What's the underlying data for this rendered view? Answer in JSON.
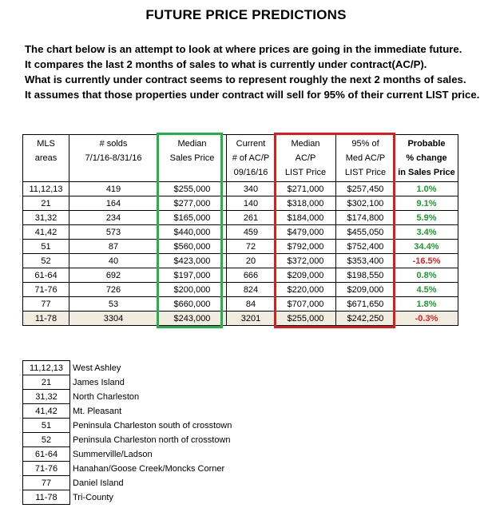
{
  "title": "FUTURE PRICE PREDICTIONS",
  "intro": [
    "The chart below is an attempt to look at where prices are going in the immediate future.",
    "It compares the last 2 months of sales to what is currently under contract(AC/P).",
    "What is currently under contract seems to represent roughly the next 2 months of sales.",
    "It assumes that those properties under contract will sell for 95% of their current LIST price."
  ],
  "headers": [
    [
      "MLS",
      "areas"
    ],
    [
      "# solds",
      "7/1/16-8/31/16"
    ],
    [
      "Median",
      "Sales Price"
    ],
    [
      "Current",
      "# of AC/P",
      "09/16/16"
    ],
    [
      "Median",
      "AC/P",
      "LIST Price"
    ],
    [
      "95% of",
      "Med AC/P",
      "LIST Price"
    ],
    [
      "Probable",
      "% change",
      "in Sales Price"
    ]
  ],
  "rows": [
    [
      "11,12,13",
      "419",
      "$255,000",
      "340",
      "$271,000",
      "$257,450",
      "1.0%"
    ],
    [
      "21",
      "164",
      "$277,000",
      "140",
      "$318,000",
      "$302,100",
      "9.1%"
    ],
    [
      "31,32",
      "234",
      "$165,000",
      "261",
      "$184,000",
      "$174,800",
      "5.9%"
    ],
    [
      "41,42",
      "573",
      "$440,000",
      "459",
      "$479,000",
      "$455,050",
      "3.4%"
    ],
    [
      "51",
      "87",
      "$560,000",
      "72",
      "$792,000",
      "$752,400",
      "34.4%"
    ],
    [
      "52",
      "40",
      "$423,000",
      "20",
      "$372,000",
      "$353,400",
      "-16.5%"
    ],
    [
      "61-64",
      "692",
      "$197,000",
      "666",
      "$209,000",
      "$198,550",
      "0.8%"
    ],
    [
      "71-76",
      "726",
      "$200,000",
      "824",
      "$220,000",
      "$209,000",
      "4.5%"
    ],
    [
      "77",
      "53",
      "$660,000",
      "84",
      "$707,000",
      "$671,650",
      "1.8%"
    ],
    [
      "11-78",
      "3304",
      "$243,000",
      "3201",
      "$255,000",
      "$242,250",
      "-0.3%"
    ]
  ],
  "legend": [
    [
      "11,12,13",
      "West Ashley"
    ],
    [
      "21",
      "James Island"
    ],
    [
      "31,32",
      "North Charleston"
    ],
    [
      "41,42",
      "Mt. Pleasant"
    ],
    [
      "51",
      "Peninsula Charleston south of crosstown"
    ],
    [
      "52",
      "Peninsula Charleston north of crosstown"
    ],
    [
      "61-64",
      "Summerville/Ladson"
    ],
    [
      "71-76",
      "Hanahan/Goose Creek/Moncks Corner"
    ],
    [
      "77",
      "Daniel Island"
    ],
    [
      "11-78",
      "Tri-County"
    ]
  ],
  "colors": {
    "positive": "#1a9a2a",
    "negative": "#e02020",
    "green_box": "#22b04a",
    "red_box": "#e01b1b",
    "total_row": "#f0ece0"
  }
}
